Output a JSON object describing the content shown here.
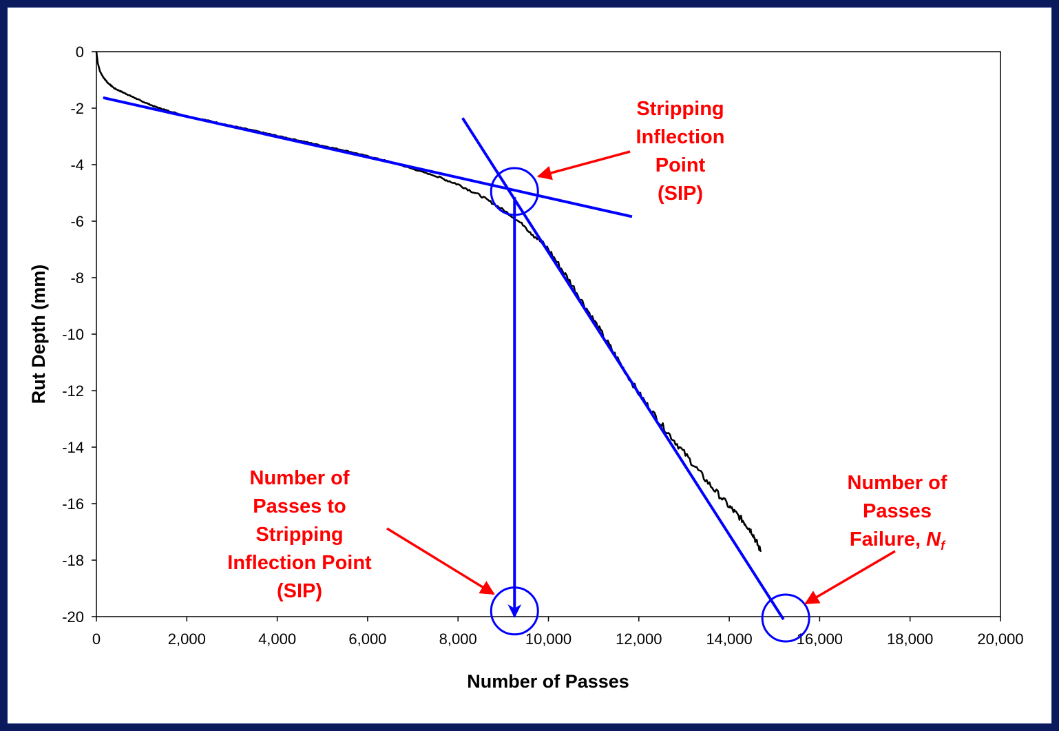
{
  "chart_data": {
    "type": "line",
    "xlabel": "Number of Passes",
    "ylabel": "Rut Depth  (mm)",
    "xlim": [
      0,
      20000
    ],
    "ylim": [
      -20,
      0
    ],
    "x_ticks": [
      "0",
      "2,000",
      "4,000",
      "6,000",
      "8,000",
      "10,000",
      "12,000",
      "14,000",
      "16,000",
      "18,000",
      "20,000"
    ],
    "y_ticks": [
      "0",
      "-2",
      "-4",
      "-6",
      "-8",
      "-10",
      "-12",
      "-14",
      "-16",
      "-18",
      "-20"
    ],
    "grid": false,
    "legend": "none",
    "series": [
      {
        "color": "#000000",
        "points": [
          [
            0,
            0
          ],
          [
            30,
            -0.4
          ],
          [
            80,
            -0.7
          ],
          [
            150,
            -0.9
          ],
          [
            250,
            -1.1
          ],
          [
            400,
            -1.3
          ],
          [
            600,
            -1.45
          ],
          [
            800,
            -1.6
          ],
          [
            1000,
            -1.75
          ],
          [
            1300,
            -1.95
          ],
          [
            1600,
            -2.1
          ],
          [
            2000,
            -2.28
          ],
          [
            2500,
            -2.45
          ],
          [
            3000,
            -2.63
          ],
          [
            3500,
            -2.8
          ],
          [
            4000,
            -2.98
          ],
          [
            4500,
            -3.15
          ],
          [
            5000,
            -3.33
          ],
          [
            5500,
            -3.5
          ],
          [
            6000,
            -3.7
          ],
          [
            6500,
            -3.9
          ],
          [
            7000,
            -4.15
          ],
          [
            7500,
            -4.4
          ],
          [
            8000,
            -4.7
          ],
          [
            8500,
            -5.1
          ],
          [
            9000,
            -5.6
          ],
          [
            9500,
            -6.2
          ],
          [
            10000,
            -7.0
          ],
          [
            10500,
            -8.2
          ],
          [
            11000,
            -9.5
          ],
          [
            11500,
            -10.8
          ],
          [
            12000,
            -12.1
          ],
          [
            12500,
            -13.2
          ],
          [
            13000,
            -14.2
          ],
          [
            13500,
            -15.2
          ],
          [
            14000,
            -16.1
          ],
          [
            14300,
            -16.6
          ],
          [
            14500,
            -17.0
          ],
          [
            14700,
            -17.7
          ]
        ]
      }
    ],
    "fit_lines": [
      {
        "color": "#0000ff",
        "from": [
          150,
          -1.63
        ],
        "to": [
          11850,
          -5.84
        ]
      },
      {
        "color": "#0000ff",
        "from": [
          8100,
          -2.35
        ],
        "to": [
          15200,
          -20.1
        ]
      }
    ],
    "arrows": [
      {
        "color": "#0000ff",
        "from": [
          9250,
          -5.15
        ],
        "to": [
          9250,
          -20.0
        ]
      }
    ],
    "circles": [
      {
        "color": "#0000ff",
        "center": [
          9250,
          -4.95
        ],
        "label": "sip"
      },
      {
        "color": "#0000ff",
        "center": [
          9250,
          -19.8
        ],
        "label": "sip-passes"
      },
      {
        "color": "#0000ff",
        "center": [
          15250,
          -20.05
        ],
        "label": "nf"
      }
    ],
    "annotations": {
      "sip": [
        "Stripping",
        "Inflection",
        "Point",
        "(SIP)"
      ],
      "sip_passes": [
        "Number of",
        "Passes to",
        "Stripping",
        "Inflection Point",
        "(SIP)"
      ],
      "nf_line1": "Number of",
      "nf_line2": "Passes",
      "nf_line3_prefix": "Failure, ",
      "nf_symbol": "N",
      "nf_subscript": "f"
    },
    "annotation_color": "#ff0000"
  }
}
